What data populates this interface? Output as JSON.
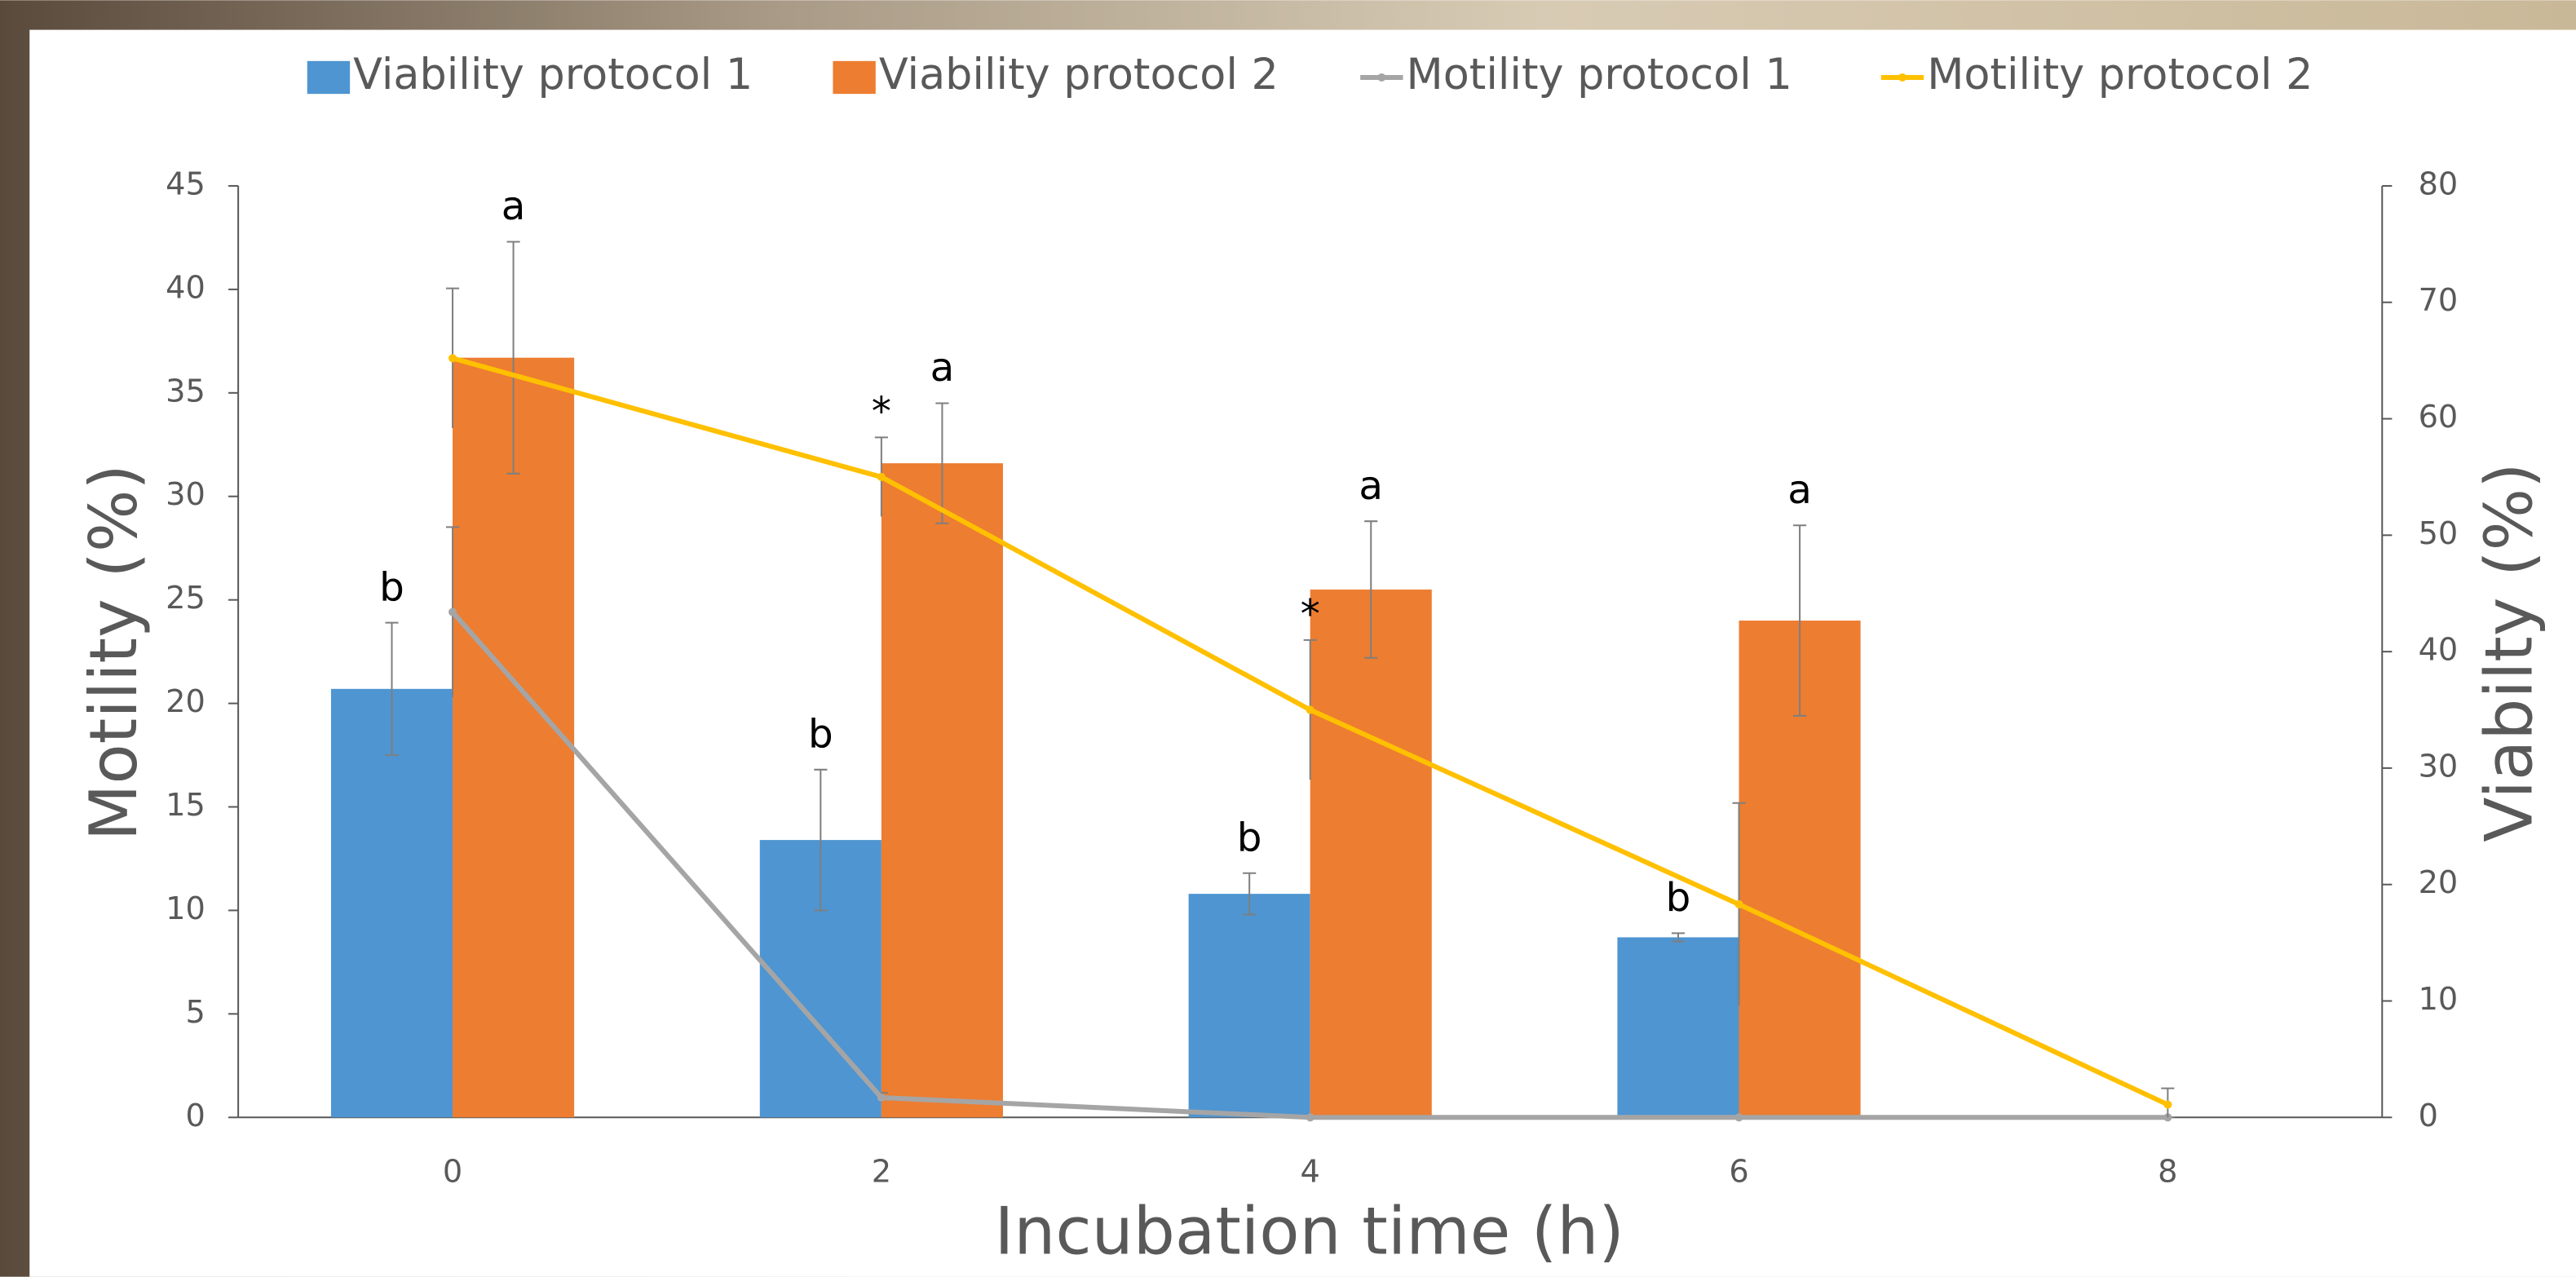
{
  "chart_data": {
    "type": "combo",
    "categories": [
      "0",
      "2",
      "4",
      "6",
      "8"
    ],
    "xlabel": "Incubation time (h)",
    "ylabel": "Motility (%)",
    "y2label": "Viabilty (%)",
    "ylim": [
      0,
      45
    ],
    "yticks": [
      0,
      5,
      10,
      15,
      20,
      25,
      30,
      35,
      40,
      45
    ],
    "y2lim": [
      0,
      80
    ],
    "y2ticks": [
      0,
      10,
      20,
      30,
      40,
      50,
      60,
      70,
      80
    ],
    "legend": "top",
    "series": [
      {
        "name": "Viability protocol 1",
        "type": "bar",
        "color": "#4e95d1",
        "values": [
          20.7,
          13.4,
          10.8,
          8.7,
          null
        ],
        "errors": [
          3.2,
          3.4,
          1.0,
          0.2,
          null
        ],
        "annotations": [
          "b",
          "b",
          "b",
          "b",
          null
        ]
      },
      {
        "name": "Viability protocol 2",
        "type": "bar",
        "color": "#ed7d31",
        "values": [
          36.7,
          31.6,
          25.5,
          24.0,
          null
        ],
        "errors": [
          5.6,
          2.9,
          3.3,
          4.6,
          null
        ],
        "annotations": [
          "a",
          "a",
          "a",
          "a",
          null
        ]
      },
      {
        "name": "Motility protocol 1",
        "type": "line",
        "axis": "y2",
        "color": "#a5a5a5",
        "values": [
          43.4,
          1.7,
          0,
          0,
          0
        ],
        "errors": [
          7.3,
          0.4,
          0,
          0,
          0
        ]
      },
      {
        "name": "Motility protocol 2",
        "type": "line",
        "axis": "y2",
        "color": "#ffc000",
        "values": [
          65.2,
          55.0,
          35.0,
          18.3,
          1.1
        ],
        "errors": [
          6.0,
          3.4,
          6.0,
          8.7,
          1.4
        ],
        "annotations": [
          null,
          "*",
          "*",
          null,
          null
        ]
      }
    ]
  }
}
